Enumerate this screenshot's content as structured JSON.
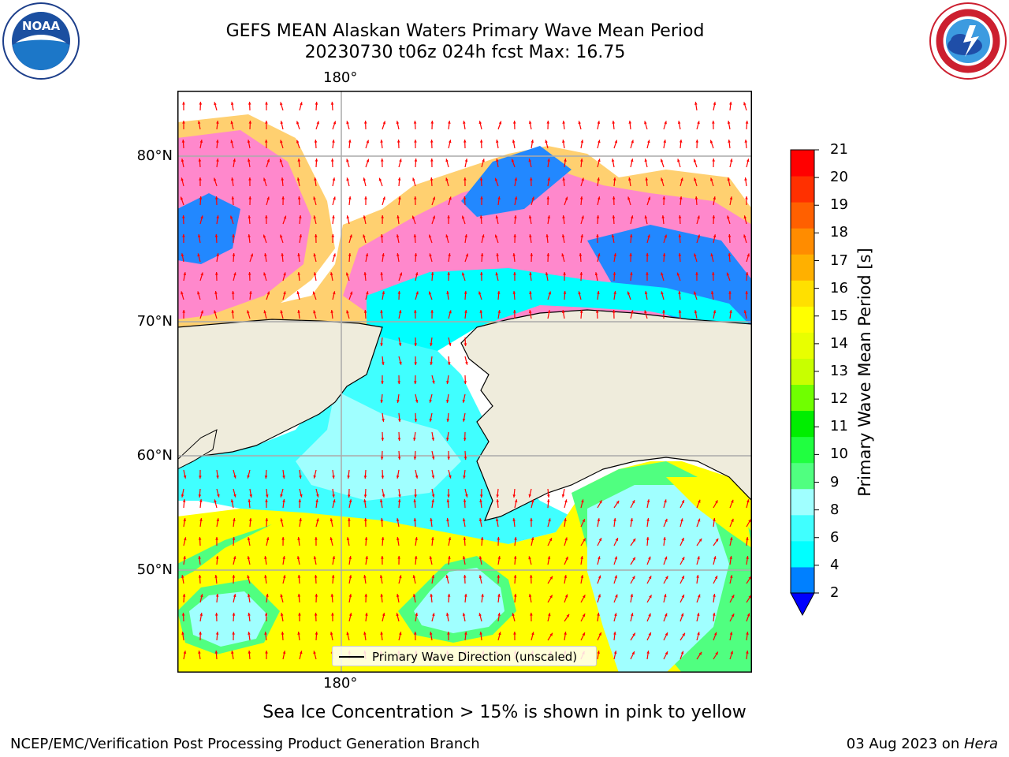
{
  "header": {
    "title_line1": "GEFS MEAN Alaskan Waters Primary Wave Mean Period",
    "title_line2": "20230730 t06z 024h fcst   Max: 16.75"
  },
  "logos": {
    "left": "noaa-logo",
    "right": "national-weather-service-logo"
  },
  "map": {
    "lon_labels": [
      "180°",
      "180°"
    ],
    "lat_labels": [
      "80°N",
      "70°N",
      "60°N",
      "50°N"
    ],
    "legend_label": "Primary Wave Direction (unscaled)",
    "land_color": "#efecdc",
    "arrow_color": "#ff0000"
  },
  "colorbar": {
    "title": "Primary Wave Mean Period [s]",
    "ticks": [
      "21",
      "20",
      "19",
      "18",
      "17",
      "16",
      "15",
      "14",
      "13",
      "12",
      "11",
      "10",
      "9",
      "8",
      "6",
      "4",
      "2"
    ],
    "colors": [
      "#0000ff",
      "#0080ff",
      "#00ffff",
      "#40ffff",
      "#a0ffff",
      "#50ff80",
      "#20ff40",
      "#00ee00",
      "#70ff00",
      "#c8ff00",
      "#e8ff00",
      "#ffff00",
      "#ffe000",
      "#ffb000",
      "#ff8c00",
      "#ff6000",
      "#ff3000",
      "#ff0000"
    ]
  },
  "caption": "Sea Ice Concentration > 15% is shown in pink to yellow",
  "footer": {
    "left": "NCEP/EMC/Verification Post Processing Product Generation Branch",
    "date": "03 Aug 2023 on ",
    "host": "Hera"
  }
}
